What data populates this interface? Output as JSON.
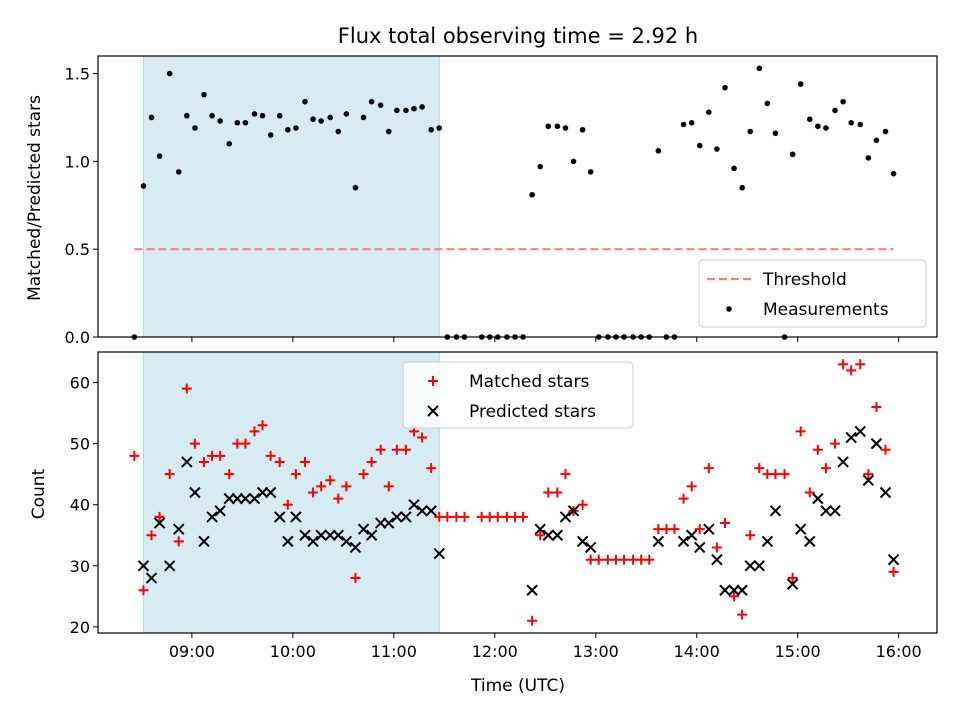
{
  "colors": {
    "shade": "#add8e6",
    "threshold": "#ff7f7f",
    "measurement": "#000000",
    "matched": "#ff0000",
    "predicted": "#000000"
  },
  "chart_data": [
    {
      "type": "scatter",
      "title": "Flux total observing time = 2.92 h",
      "xlabel": "",
      "ylabel": "Matched/Predicted stars",
      "x_unit": "hours UTC",
      "xlim": [
        8.07,
        16.38
      ],
      "ylim": [
        0.0,
        1.6
      ],
      "yticks": [
        0.0,
        0.5,
        1.0,
        1.5
      ],
      "ytick_labels": [
        "0.0",
        "0.5",
        "1.0",
        "1.5"
      ],
      "shaded_span": [
        8.52,
        11.45
      ],
      "legend_position": "lower-right",
      "legend": [
        "Threshold",
        "Measurements"
      ],
      "threshold": {
        "name": "Threshold",
        "value": 0.5,
        "x_range": [
          8.43,
          15.95
        ]
      },
      "series": [
        {
          "name": "Measurements",
          "x": [
            8.43,
            8.52,
            8.6,
            8.68,
            8.78,
            8.87,
            8.95,
            9.03,
            9.12,
            9.2,
            9.28,
            9.37,
            9.45,
            9.53,
            9.62,
            9.7,
            9.78,
            9.87,
            9.95,
            10.03,
            10.12,
            10.2,
            10.28,
            10.37,
            10.45,
            10.53,
            10.62,
            10.7,
            10.78,
            10.87,
            10.95,
            11.03,
            11.12,
            11.2,
            11.28,
            11.37,
            11.45,
            11.53,
            11.62,
            11.7,
            11.87,
            11.95,
            12.03,
            12.12,
            12.2,
            12.28,
            12.37,
            12.45,
            12.53,
            12.62,
            12.7,
            12.78,
            12.87,
            12.95,
            13.03,
            13.12,
            13.2,
            13.28,
            13.37,
            13.45,
            13.53,
            13.62,
            13.7,
            13.78,
            13.87,
            13.95,
            14.03,
            14.12,
            14.2,
            14.28,
            14.37,
            14.45,
            14.53,
            14.62,
            14.7,
            14.78,
            14.87,
            14.95,
            15.03,
            15.12,
            15.2,
            15.28,
            15.37,
            15.45,
            15.53,
            15.62,
            15.7,
            15.78,
            15.87,
            15.95
          ],
          "y": [
            0.0,
            0.86,
            1.25,
            1.03,
            1.5,
            0.94,
            1.26,
            1.19,
            1.38,
            1.26,
            1.23,
            1.1,
            1.22,
            1.22,
            1.27,
            1.26,
            1.15,
            1.26,
            1.18,
            1.19,
            1.34,
            1.24,
            1.23,
            1.25,
            1.17,
            1.27,
            0.85,
            1.25,
            1.34,
            1.32,
            1.17,
            1.29,
            1.29,
            1.3,
            1.31,
            1.18,
            1.19,
            0.0,
            0.0,
            0.0,
            0.0,
            0.0,
            0.0,
            0.0,
            0.0,
            0.0,
            0.81,
            0.97,
            1.2,
            1.2,
            1.19,
            1.0,
            1.18,
            0.94,
            0.0,
            0.0,
            0.0,
            0.0,
            0.0,
            0.0,
            0.0,
            1.06,
            0.0,
            0.0,
            1.21,
            1.22,
            1.09,
            1.28,
            1.07,
            1.42,
            0.96,
            0.85,
            1.17,
            1.53,
            1.33,
            1.16,
            0.0,
            1.04,
            1.44,
            1.24,
            1.2,
            1.19,
            1.29,
            1.34,
            1.22,
            1.21,
            1.02,
            1.12,
            1.17,
            0.93
          ]
        }
      ]
    },
    {
      "type": "scatter",
      "title": "",
      "xlabel": "Time (UTC)",
      "ylabel": "Count",
      "x_unit": "hours UTC",
      "xlim": [
        8.07,
        16.38
      ],
      "ylim": [
        19,
        65
      ],
      "xticks": [
        9,
        10,
        11,
        12,
        13,
        14,
        15,
        16
      ],
      "xtick_labels": [
        "09:00",
        "10:00",
        "11:00",
        "12:00",
        "13:00",
        "14:00",
        "15:00",
        "16:00"
      ],
      "yticks": [
        20,
        30,
        40,
        50,
        60
      ],
      "ytick_labels": [
        "20",
        "30",
        "40",
        "50",
        "60"
      ],
      "shaded_span": [
        8.52,
        11.45
      ],
      "legend_position": "top-center",
      "legend": [
        "Matched stars",
        "Predicted stars"
      ],
      "series": [
        {
          "name": "Matched stars",
          "marker": "+",
          "x": [
            8.43,
            8.52,
            8.6,
            8.68,
            8.78,
            8.87,
            8.95,
            9.03,
            9.12,
            9.2,
            9.28,
            9.37,
            9.45,
            9.53,
            9.62,
            9.7,
            9.78,
            9.87,
            9.95,
            10.03,
            10.12,
            10.2,
            10.28,
            10.37,
            10.45,
            10.53,
            10.62,
            10.7,
            10.78,
            10.87,
            10.95,
            11.03,
            11.12,
            11.2,
            11.28,
            11.37,
            11.45,
            11.53,
            11.62,
            11.7,
            11.87,
            11.95,
            12.03,
            12.12,
            12.2,
            12.28,
            12.37,
            12.45,
            12.53,
            12.62,
            12.7,
            12.78,
            12.87,
            12.95,
            13.03,
            13.12,
            13.2,
            13.28,
            13.37,
            13.45,
            13.53,
            13.62,
            13.7,
            13.78,
            13.87,
            13.95,
            14.03,
            14.12,
            14.2,
            14.28,
            14.37,
            14.45,
            14.53,
            14.62,
            14.7,
            14.78,
            14.87,
            14.95,
            15.03,
            15.12,
            15.2,
            15.28,
            15.37,
            15.45,
            15.53,
            15.62,
            15.7,
            15.78,
            15.87,
            15.95
          ],
          "y": [
            48,
            26,
            35,
            38,
            45,
            34,
            59,
            50,
            47,
            48,
            48,
            45,
            50,
            50,
            52,
            53,
            48,
            47,
            40,
            45,
            47,
            42,
            43,
            44,
            41,
            43,
            28,
            45,
            47,
            49,
            43,
            49,
            49,
            52,
            51,
            46,
            38,
            38,
            38,
            38,
            38,
            38,
            38,
            38,
            38,
            38,
            21,
            35,
            42,
            42,
            45,
            39,
            40,
            31,
            31,
            31,
            31,
            31,
            31,
            31,
            31,
            36,
            36,
            36,
            41,
            43,
            36,
            46,
            33,
            37,
            25,
            22,
            35,
            46,
            45,
            45,
            45,
            28,
            52,
            42,
            49,
            46,
            50,
            63,
            62,
            63,
            45,
            56,
            49,
            29
          ]
        },
        {
          "name": "Predicted stars",
          "marker": "x",
          "x": [
            8.52,
            8.6,
            8.68,
            8.78,
            8.87,
            8.95,
            9.03,
            9.12,
            9.2,
            9.28,
            9.37,
            9.45,
            9.53,
            9.62,
            9.7,
            9.78,
            9.87,
            9.95,
            10.03,
            10.12,
            10.2,
            10.28,
            10.37,
            10.45,
            10.53,
            10.62,
            10.7,
            10.78,
            10.87,
            10.95,
            11.03,
            11.12,
            11.2,
            11.28,
            11.37,
            11.45,
            12.37,
            12.45,
            12.53,
            12.62,
            12.7,
            12.78,
            12.87,
            12.95,
            13.62,
            13.87,
            13.95,
            14.03,
            14.12,
            14.2,
            14.28,
            14.37,
            14.45,
            14.53,
            14.62,
            14.7,
            14.78,
            14.95,
            15.03,
            15.12,
            15.2,
            15.28,
            15.37,
            15.45,
            15.53,
            15.62,
            15.7,
            15.78,
            15.87,
            15.95
          ],
          "y": [
            30,
            28,
            37,
            30,
            36,
            47,
            42,
            34,
            38,
            39,
            41,
            41,
            41,
            41,
            42,
            42,
            38,
            34,
            38,
            35,
            34,
            35,
            35,
            35,
            34,
            33,
            36,
            35,
            37,
            37,
            38,
            38,
            40,
            39,
            39,
            32,
            26,
            36,
            35,
            35,
            38,
            39,
            34,
            33,
            34,
            34,
            35,
            33,
            36,
            31,
            26,
            26,
            26,
            30,
            30,
            34,
            39,
            27,
            36,
            34,
            41,
            39,
            39,
            47,
            51,
            52,
            44,
            50,
            42,
            31
          ]
        }
      ]
    }
  ]
}
